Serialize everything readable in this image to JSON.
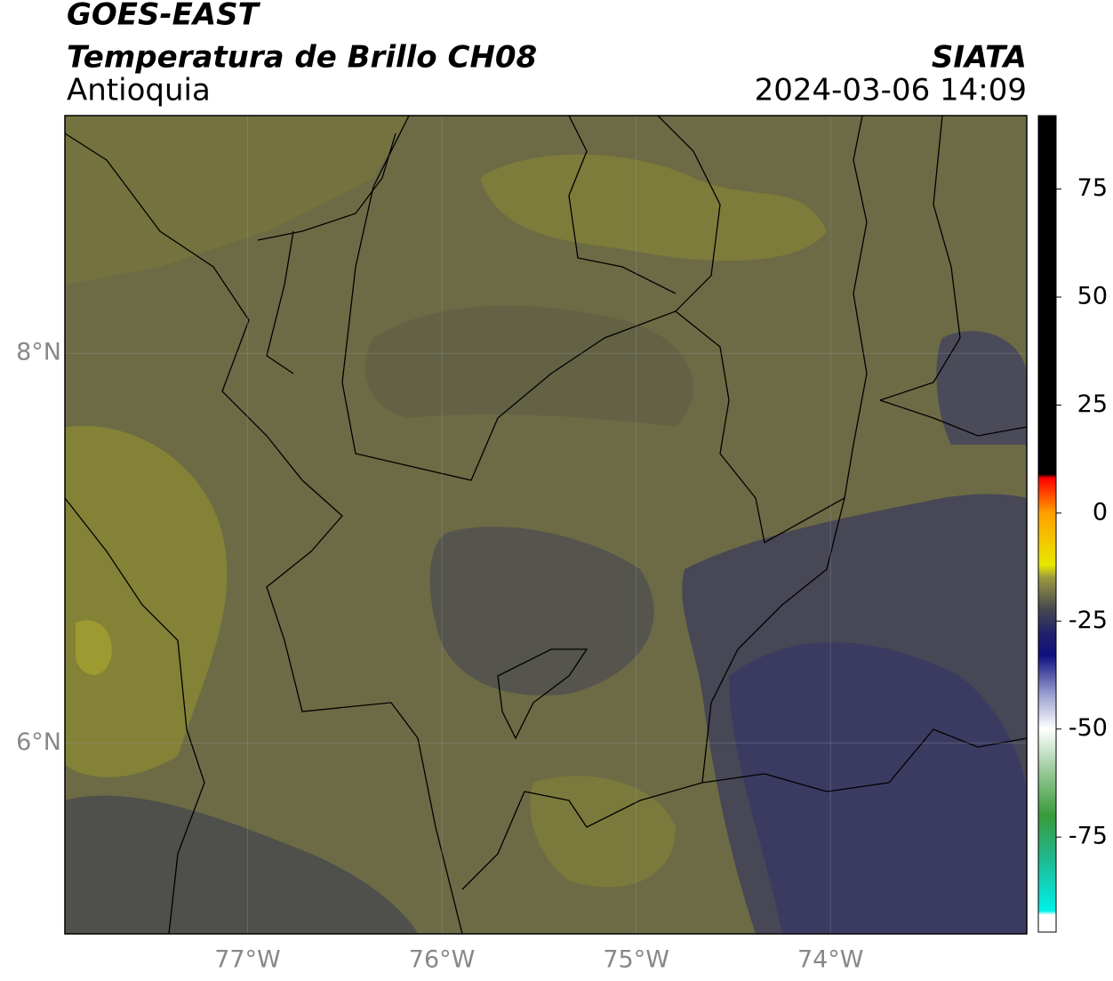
{
  "header": {
    "title": "GOES-EAST",
    "subtitle": "Temperatura de Brillo CH08",
    "region": "Antioquia",
    "source": "SIATA",
    "datetime": "2024-03-06 14:09"
  },
  "map": {
    "xlim": [
      -77.94,
      -72.99
    ],
    "ylim": [
      5.02,
      9.22
    ],
    "xticks": [
      {
        "value": -77,
        "label": "77°W"
      },
      {
        "value": -76,
        "label": "76°W"
      },
      {
        "value": -75,
        "label": "75°W"
      },
      {
        "value": -74,
        "label": "74°W"
      }
    ],
    "yticks": [
      {
        "value": 8,
        "label": "8°N"
      },
      {
        "value": 6,
        "label": "6°N"
      }
    ]
  },
  "colorbar": {
    "clim": [
      -97,
      92
    ],
    "ticks": [
      75,
      50,
      25,
      0,
      -25,
      -50,
      -75
    ]
  }
}
